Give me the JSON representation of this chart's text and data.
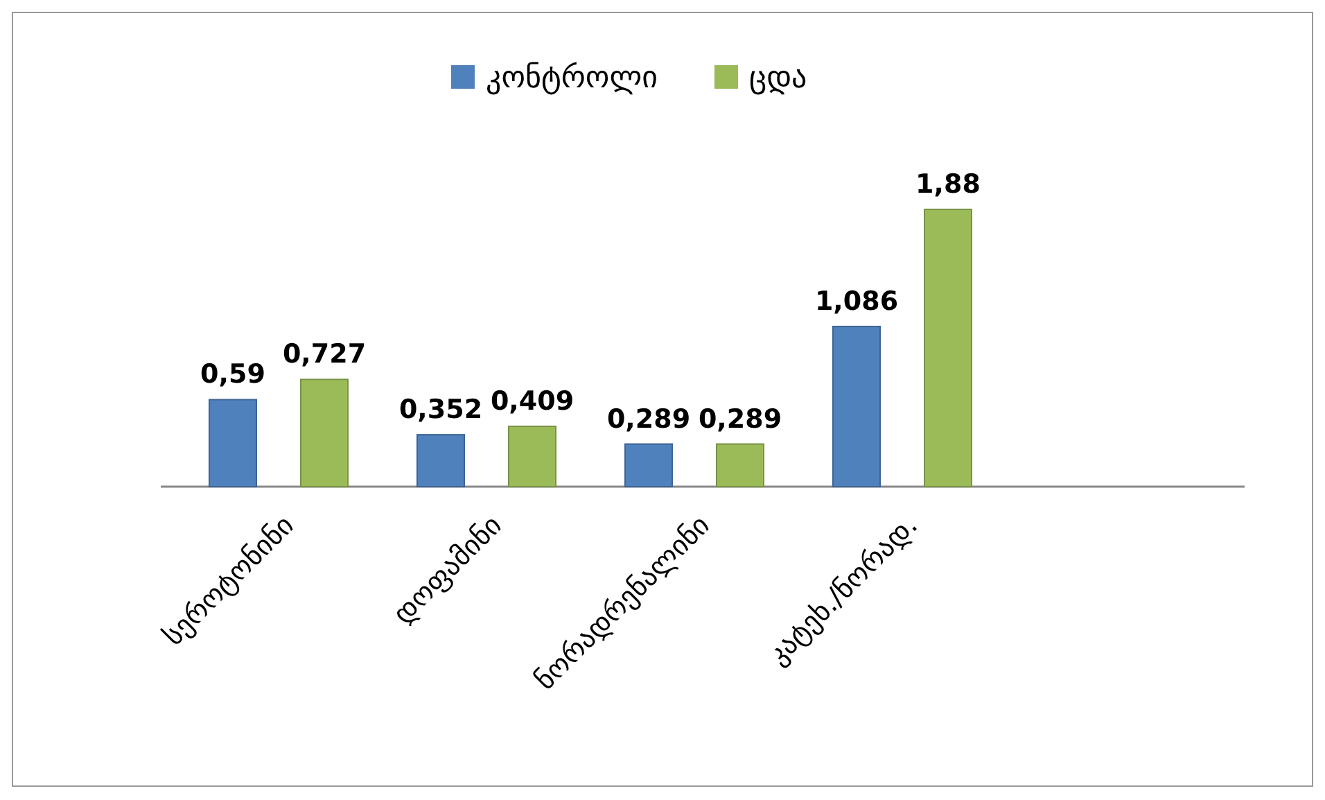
{
  "chart_data": {
    "type": "bar",
    "categories": [
      "სეროტონინი",
      "დოფამინი",
      "ნორადრენალინი",
      "კატეხ./ნორად."
    ],
    "series": [
      {
        "name": "კონტროლი",
        "color": "#4f81bd",
        "values": [
          0.59,
          0.352,
          0.289,
          1.086
        ],
        "value_labels": [
          "0,59",
          "0,352",
          "0,289",
          "1,086"
        ]
      },
      {
        "name": "ცდა",
        "color": "#9bbb59",
        "values": [
          0.727,
          0.409,
          0.289,
          1.88
        ],
        "value_labels": [
          "0,727",
          "0,409",
          "0,289",
          "1,88"
        ]
      }
    ],
    "legend": "top"
  }
}
